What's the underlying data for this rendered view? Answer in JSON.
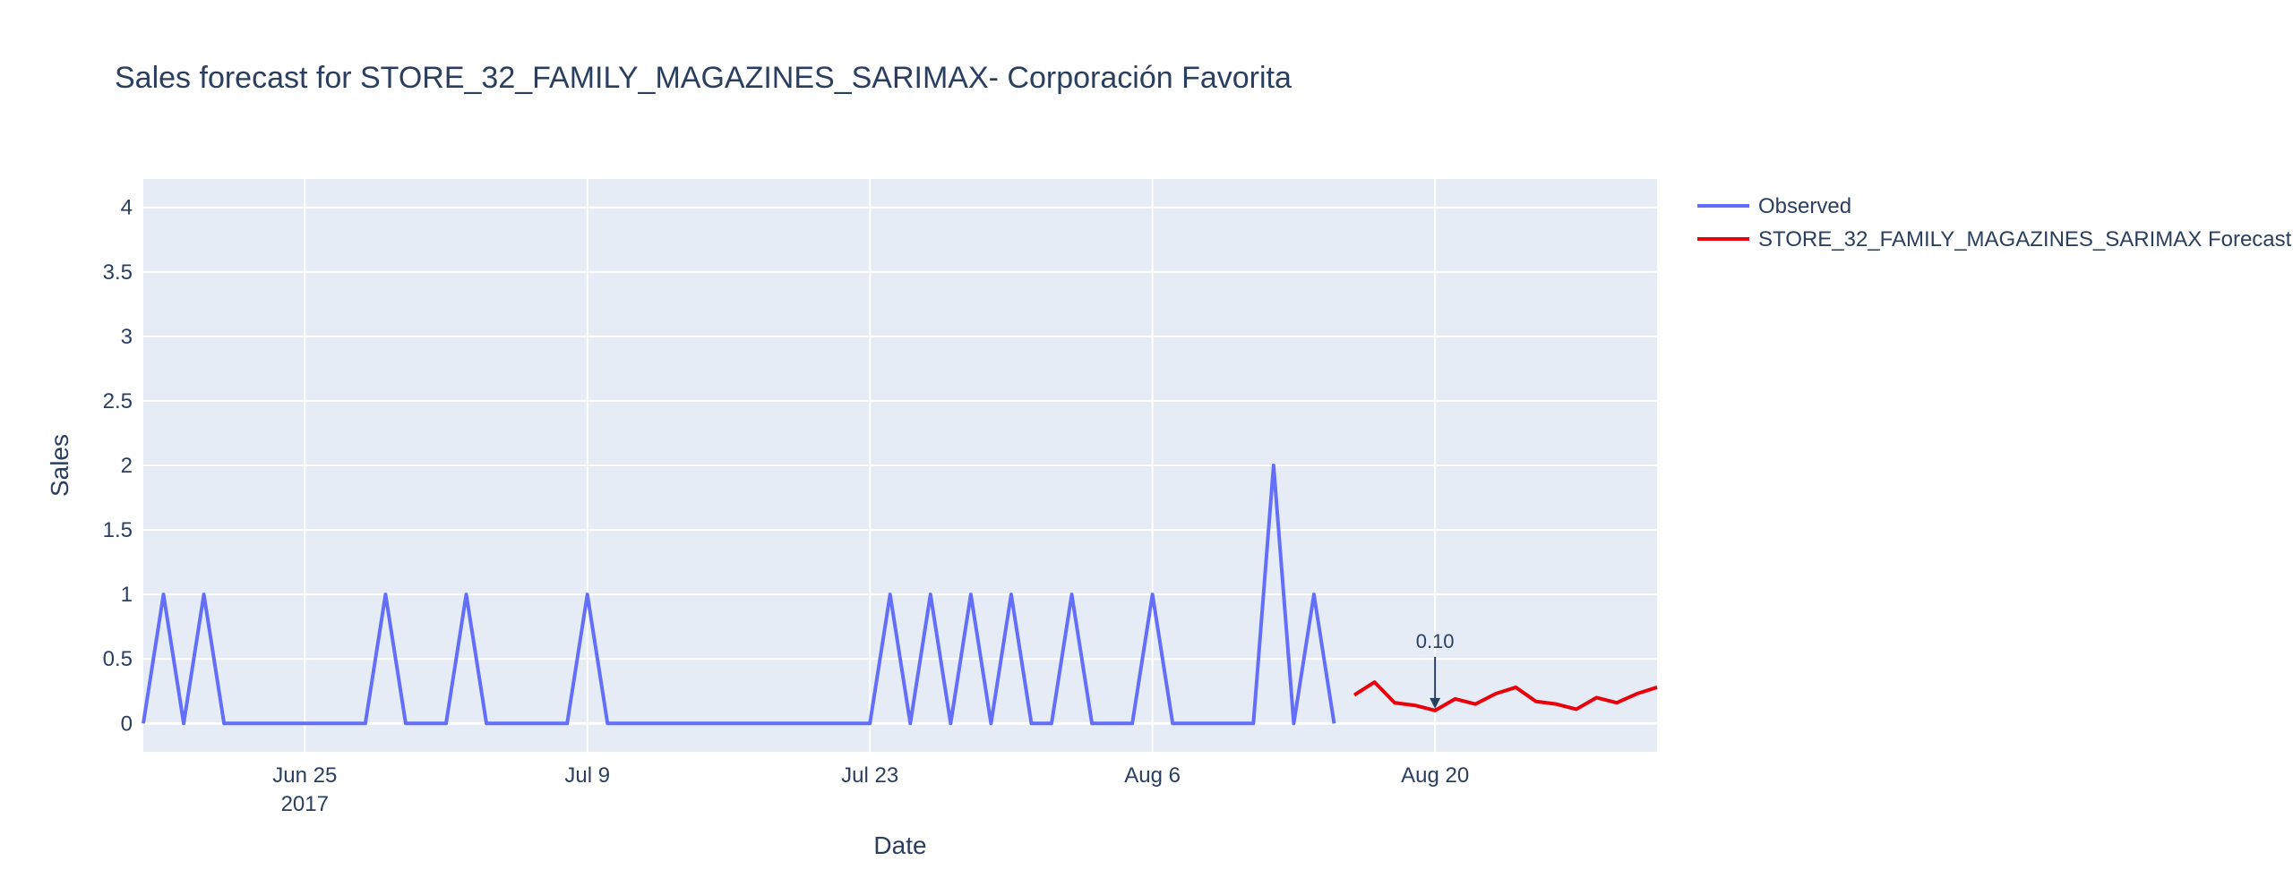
{
  "chart_data": {
    "type": "line",
    "title": "Sales forecast for STORE_32_FAMILY_MAGAZINES_SARIMAX- Corporación Favorita",
    "xlabel": "Date",
    "ylabel": "Sales",
    "ylim": [
      -0.22,
      4.22
    ],
    "xlim": [
      "2017-06-17",
      "2017-08-31"
    ],
    "grid": true,
    "legend_position": "top-right",
    "x_ticks": [
      {
        "date": "2017-06-25",
        "label": "Jun 25",
        "sublabel": "2017"
      },
      {
        "date": "2017-07-09",
        "label": "Jul 9",
        "sublabel": ""
      },
      {
        "date": "2017-07-23",
        "label": "Jul 23",
        "sublabel": ""
      },
      {
        "date": "2017-08-06",
        "label": "Aug 6",
        "sublabel": ""
      },
      {
        "date": "2017-08-20",
        "label": "Aug 20",
        "sublabel": ""
      }
    ],
    "y_ticks": [
      {
        "value": 0,
        "label": "0"
      },
      {
        "value": 0.5,
        "label": "0.5"
      },
      {
        "value": 1,
        "label": "1"
      },
      {
        "value": 1.5,
        "label": "1.5"
      },
      {
        "value": 2,
        "label": "2"
      },
      {
        "value": 2.5,
        "label": "2.5"
      },
      {
        "value": 3,
        "label": "3"
      },
      {
        "value": 3.5,
        "label": "3.5"
      },
      {
        "value": 4,
        "label": "4"
      }
    ],
    "series": [
      {
        "name": "Observed",
        "color": "#636efa",
        "x": [
          "2017-06-17",
          "2017-06-18",
          "2017-06-19",
          "2017-06-20",
          "2017-06-21",
          "2017-06-22",
          "2017-06-23",
          "2017-06-24",
          "2017-06-25",
          "2017-06-26",
          "2017-06-27",
          "2017-06-28",
          "2017-06-29",
          "2017-06-30",
          "2017-07-01",
          "2017-07-02",
          "2017-07-03",
          "2017-07-04",
          "2017-07-05",
          "2017-07-06",
          "2017-07-07",
          "2017-07-08",
          "2017-07-09",
          "2017-07-10",
          "2017-07-11",
          "2017-07-12",
          "2017-07-13",
          "2017-07-14",
          "2017-07-15",
          "2017-07-16",
          "2017-07-17",
          "2017-07-18",
          "2017-07-19",
          "2017-07-20",
          "2017-07-21",
          "2017-07-22",
          "2017-07-23",
          "2017-07-24",
          "2017-07-25",
          "2017-07-26",
          "2017-07-27",
          "2017-07-28",
          "2017-07-29",
          "2017-07-30",
          "2017-07-31",
          "2017-08-01",
          "2017-08-02",
          "2017-08-03",
          "2017-08-04",
          "2017-08-05",
          "2017-08-06",
          "2017-08-07",
          "2017-08-08",
          "2017-08-09",
          "2017-08-10",
          "2017-08-11",
          "2017-08-12",
          "2017-08-13",
          "2017-08-14",
          "2017-08-15"
        ],
        "y": [
          0,
          1,
          0,
          1,
          0,
          0,
          0,
          0,
          0,
          0,
          0,
          0,
          1,
          0,
          0,
          0,
          1,
          0,
          0,
          0,
          0,
          0,
          1,
          0,
          0,
          0,
          0,
          0,
          0,
          0,
          0,
          0,
          0,
          0,
          0,
          0,
          0,
          1,
          0,
          1,
          0,
          1,
          0,
          1,
          0,
          0,
          1,
          0,
          0,
          0,
          1,
          0,
          0,
          0,
          0,
          0,
          2,
          0,
          1,
          0
        ]
      },
      {
        "name": "STORE_32_FAMILY_MAGAZINES_SARIMAX Forecast",
        "color": "#e8000b",
        "x": [
          "2017-08-16",
          "2017-08-17",
          "2017-08-18",
          "2017-08-19",
          "2017-08-20",
          "2017-08-21",
          "2017-08-22",
          "2017-08-23",
          "2017-08-24",
          "2017-08-25",
          "2017-08-26",
          "2017-08-27",
          "2017-08-28",
          "2017-08-29",
          "2017-08-30",
          "2017-08-31"
        ],
        "y": [
          0.22,
          0.32,
          0.16,
          0.14,
          0.1,
          0.19,
          0.15,
          0.23,
          0.28,
          0.17,
          0.15,
          0.11,
          0.2,
          0.16,
          0.23,
          0.28
        ]
      }
    ],
    "annotations": [
      {
        "x": "2017-08-20",
        "y": 0.1,
        "text": "0.10"
      }
    ]
  }
}
